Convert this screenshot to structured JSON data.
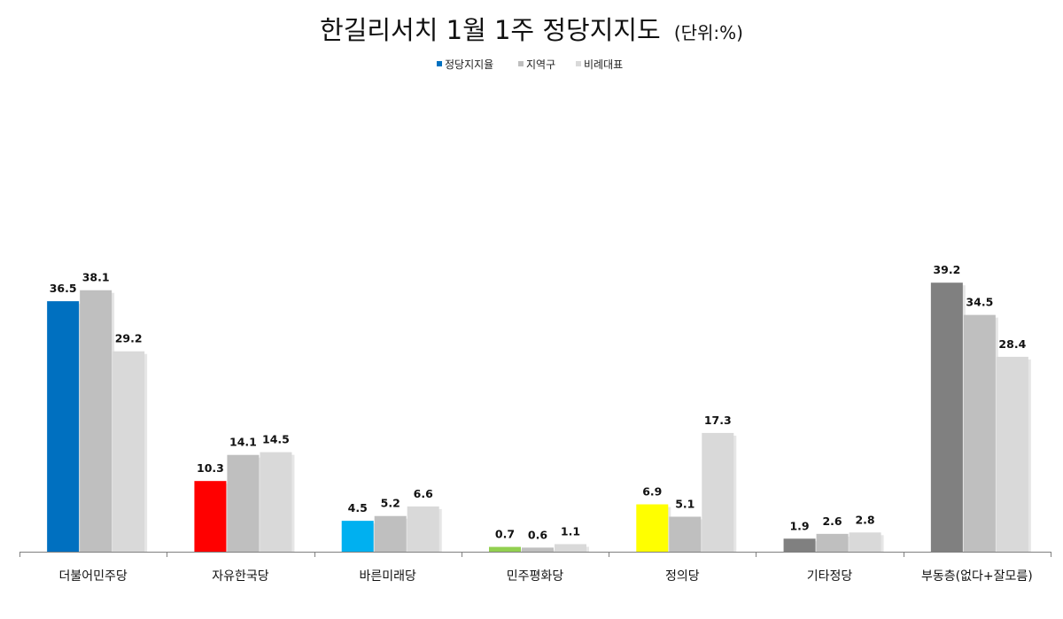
{
  "chart_data": {
    "type": "bar",
    "title": "한길리서치 1월 1주 정당지지도",
    "title_unit": "(단위:%)",
    "legend_position": "top",
    "grid": false,
    "ylim": [
      0,
      45
    ],
    "series_names": [
      "정당지지율",
      "지역구",
      "비례대표"
    ],
    "series_colors": [
      "#0070C0",
      "#BFBFBF",
      "#D9D9D9"
    ],
    "categories": [
      {
        "label": "더불어민주당",
        "colors": [
          "#0070C0",
          "#BFBFBF",
          "#D9D9D9"
        ],
        "values": [
          36.5,
          38.1,
          29.2
        ],
        "value_labels": [
          "36.5",
          "38.1",
          "29.2"
        ]
      },
      {
        "label": "자유한국당",
        "colors": [
          "#FF0000",
          "#BFBFBF",
          "#D9D9D9"
        ],
        "values": [
          10.3,
          14.1,
          14.5
        ],
        "value_labels": [
          "10.3",
          "14.1",
          "14.5"
        ]
      },
      {
        "label": "바른미래당",
        "colors": [
          "#00B0F0",
          "#BFBFBF",
          "#D9D9D9"
        ],
        "values": [
          4.5,
          5.2,
          6.6
        ],
        "value_labels": [
          "4.5",
          "5.2",
          "6.6"
        ]
      },
      {
        "label": "민주평화당",
        "colors": [
          "#92D050",
          "#BFBFBF",
          "#D9D9D9"
        ],
        "values": [
          0.7,
          0.6,
          1.1
        ],
        "value_labels": [
          "0.7",
          "0.6",
          "1.1"
        ]
      },
      {
        "label": "정의당",
        "colors": [
          "#FFFF00",
          "#BFBFBF",
          "#D9D9D9"
        ],
        "values": [
          6.9,
          5.1,
          17.3
        ],
        "value_labels": [
          "6.9",
          "5.1",
          "17.3"
        ]
      },
      {
        "label": "기타정당",
        "colors": [
          "#808080",
          "#BFBFBF",
          "#D9D9D9"
        ],
        "values": [
          1.9,
          2.6,
          2.8
        ],
        "value_labels": [
          "1.9",
          "2.6",
          "2.8"
        ]
      },
      {
        "label": "부동층(없다+잘모름)",
        "colors": [
          "#808080",
          "#BFBFBF",
          "#D9D9D9"
        ],
        "values": [
          39.2,
          34.5,
          28.4
        ],
        "value_labels": [
          "39.2",
          "34.5",
          "28.4"
        ]
      }
    ]
  }
}
